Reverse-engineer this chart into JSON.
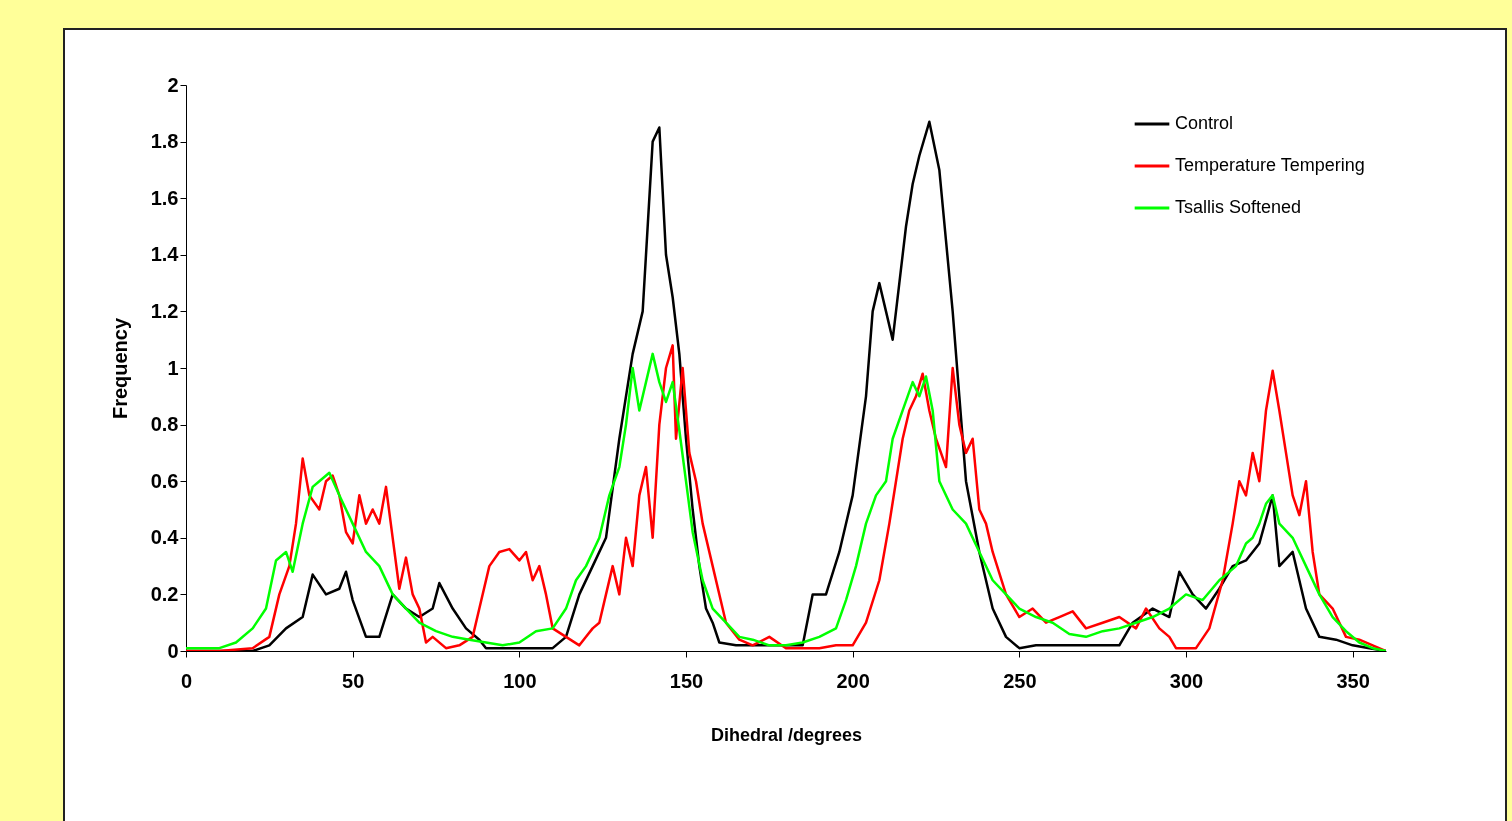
{
  "chart_data": {
    "type": "line",
    "xlabel": "Dihedral /degrees",
    "ylabel": "Frequency",
    "xlim": [
      0,
      360
    ],
    "ylim": [
      0,
      2
    ],
    "xticks": [
      0,
      50,
      100,
      150,
      200,
      250,
      300,
      350
    ],
    "yticks": [
      0,
      0.2,
      0.4,
      0.6,
      0.8,
      1,
      1.2,
      1.4,
      1.6,
      1.8,
      2
    ],
    "grid": false,
    "legend": "top right",
    "series": [
      {
        "name": "Control",
        "color": "#000000",
        "x": [
          0,
          10,
          20,
          25,
          30,
          35,
          38,
          42,
          46,
          48,
          50,
          54,
          58,
          62,
          66,
          70,
          74,
          76,
          80,
          84,
          88,
          90,
          100,
          110,
          114,
          118,
          122,
          126,
          130,
          134,
          137,
          140,
          142,
          144,
          146,
          148,
          150,
          152,
          154,
          156,
          158,
          160,
          165,
          175,
          185,
          188,
          192,
          196,
          200,
          204,
          206,
          208,
          210,
          212,
          214,
          216,
          218,
          220,
          223,
          226,
          228,
          230,
          232,
          234,
          238,
          242,
          246,
          250,
          255,
          265,
          280,
          284,
          290,
          295,
          298,
          302,
          306,
          310,
          314,
          318,
          322,
          326,
          328,
          332,
          336,
          340,
          345,
          350,
          355,
          360
        ],
        "values": [
          0,
          0,
          0,
          0.02,
          0.08,
          0.12,
          0.27,
          0.2,
          0.22,
          0.28,
          0.18,
          0.05,
          0.05,
          0.2,
          0.15,
          0.12,
          0.15,
          0.24,
          0.15,
          0.08,
          0.04,
          0.01,
          0.01,
          0.01,
          0.05,
          0.2,
          0.3,
          0.4,
          0.75,
          1.05,
          1.2,
          1.8,
          1.85,
          1.4,
          1.25,
          1.05,
          0.75,
          0.5,
          0.3,
          0.15,
          0.1,
          0.03,
          0.02,
          0.02,
          0.02,
          0.2,
          0.2,
          0.35,
          0.55,
          0.9,
          1.2,
          1.3,
          1.2,
          1.1,
          1.3,
          1.5,
          1.65,
          1.75,
          1.87,
          1.7,
          1.45,
          1.2,
          0.9,
          0.6,
          0.35,
          0.15,
          0.05,
          0.01,
          0.02,
          0.02,
          0.02,
          0.1,
          0.15,
          0.12,
          0.28,
          0.2,
          0.15,
          0.22,
          0.3,
          0.32,
          0.38,
          0.55,
          0.3,
          0.35,
          0.15,
          0.05,
          0.04,
          0.02,
          0.01,
          0
        ]
      },
      {
        "name": "Temperature Tempering",
        "color": "#ff0000",
        "x": [
          0,
          10,
          20,
          25,
          28,
          31,
          33,
          35,
          37,
          40,
          42,
          44,
          46,
          48,
          50,
          52,
          54,
          56,
          58,
          60,
          62,
          64,
          66,
          68,
          70,
          72,
          74,
          78,
          82,
          86,
          88,
          91,
          94,
          97,
          100,
          102,
          104,
          106,
          108,
          110,
          114,
          118,
          120,
          122,
          124,
          126,
          128,
          130,
          132,
          134,
          136,
          138,
          140,
          142,
          144,
          146,
          147,
          149,
          151,
          153,
          155,
          158,
          162,
          166,
          170,
          175,
          180,
          190,
          195,
          200,
          204,
          208,
          211,
          213,
          215,
          217,
          219,
          221,
          223,
          225,
          228,
          230,
          232,
          234,
          236,
          238,
          240,
          242,
          246,
          250,
          254,
          258,
          262,
          266,
          270,
          275,
          280,
          285,
          288,
          292,
          295,
          297,
          303,
          307,
          311,
          314,
          316,
          318,
          320,
          322,
          324,
          326,
          328,
          330,
          332,
          334,
          336,
          338,
          340,
          344,
          348,
          352,
          356,
          360
        ],
        "values": [
          0,
          0,
          0.01,
          0.05,
          0.2,
          0.3,
          0.45,
          0.68,
          0.55,
          0.5,
          0.6,
          0.62,
          0.55,
          0.42,
          0.38,
          0.55,
          0.45,
          0.5,
          0.45,
          0.58,
          0.4,
          0.22,
          0.33,
          0.2,
          0.15,
          0.03,
          0.05,
          0.01,
          0.02,
          0.05,
          0.15,
          0.3,
          0.35,
          0.36,
          0.32,
          0.35,
          0.25,
          0.3,
          0.2,
          0.08,
          0.05,
          0.02,
          0.05,
          0.08,
          0.1,
          0.2,
          0.3,
          0.2,
          0.4,
          0.3,
          0.55,
          0.65,
          0.4,
          0.8,
          1,
          1.08,
          0.75,
          1,
          0.7,
          0.6,
          0.45,
          0.3,
          0.1,
          0.04,
          0.02,
          0.05,
          0.01,
          0.01,
          0.02,
          0.02,
          0.1,
          0.25,
          0.45,
          0.6,
          0.75,
          0.85,
          0.9,
          0.98,
          0.85,
          0.75,
          0.65,
          1,
          0.8,
          0.7,
          0.75,
          0.5,
          0.45,
          0.35,
          0.2,
          0.12,
          0.15,
          0.1,
          0.12,
          0.14,
          0.08,
          0.1,
          0.12,
          0.08,
          0.15,
          0.08,
          0.05,
          0.01,
          0.01,
          0.08,
          0.25,
          0.45,
          0.6,
          0.55,
          0.7,
          0.6,
          0.85,
          0.99,
          0.85,
          0.7,
          0.55,
          0.48,
          0.6,
          0.35,
          0.2,
          0.15,
          0.05,
          0.04,
          0.02,
          0
        ]
      },
      {
        "name": "Tsallis Softened",
        "color": "#00ff00",
        "x": [
          0,
          10,
          15,
          20,
          24,
          27,
          30,
          32,
          35,
          38,
          40,
          43,
          46,
          50,
          54,
          58,
          62,
          66,
          70,
          75,
          80,
          85,
          90,
          95,
          100,
          105,
          110,
          114,
          117,
          120,
          124,
          127,
          130,
          132,
          134,
          136,
          138,
          140,
          142,
          144,
          146,
          148,
          150,
          152,
          155,
          158,
          162,
          166,
          170,
          175,
          180,
          185,
          190,
          195,
          198,
          201,
          204,
          207,
          210,
          212,
          215,
          218,
          220,
          222,
          224,
          226,
          230,
          234,
          238,
          242,
          246,
          250,
          255,
          260,
          265,
          270,
          275,
          280,
          285,
          290,
          295,
          300,
          305,
          310,
          315,
          318,
          320,
          322,
          324,
          326,
          328,
          332,
          336,
          340,
          344,
          348,
          352,
          356,
          360
        ],
        "values": [
          0.01,
          0.01,
          0.03,
          0.08,
          0.15,
          0.32,
          0.35,
          0.28,
          0.45,
          0.58,
          0.6,
          0.63,
          0.55,
          0.45,
          0.35,
          0.3,
          0.2,
          0.15,
          0.1,
          0.07,
          0.05,
          0.04,
          0.03,
          0.02,
          0.03,
          0.07,
          0.08,
          0.15,
          0.25,
          0.3,
          0.4,
          0.55,
          0.65,
          0.8,
          1,
          0.85,
          0.95,
          1.05,
          0.95,
          0.88,
          0.95,
          0.78,
          0.6,
          0.42,
          0.25,
          0.15,
          0.1,
          0.05,
          0.04,
          0.02,
          0.02,
          0.03,
          0.05,
          0.08,
          0.18,
          0.3,
          0.45,
          0.55,
          0.6,
          0.75,
          0.85,
          0.95,
          0.9,
          0.97,
          0.85,
          0.6,
          0.5,
          0.45,
          0.35,
          0.25,
          0.2,
          0.15,
          0.12,
          0.1,
          0.06,
          0.05,
          0.07,
          0.08,
          0.1,
          0.12,
          0.15,
          0.2,
          0.18,
          0.25,
          0.3,
          0.38,
          0.4,
          0.45,
          0.52,
          0.55,
          0.45,
          0.4,
          0.3,
          0.2,
          0.12,
          0.07,
          0.03,
          0.01,
          0
        ]
      }
    ]
  }
}
